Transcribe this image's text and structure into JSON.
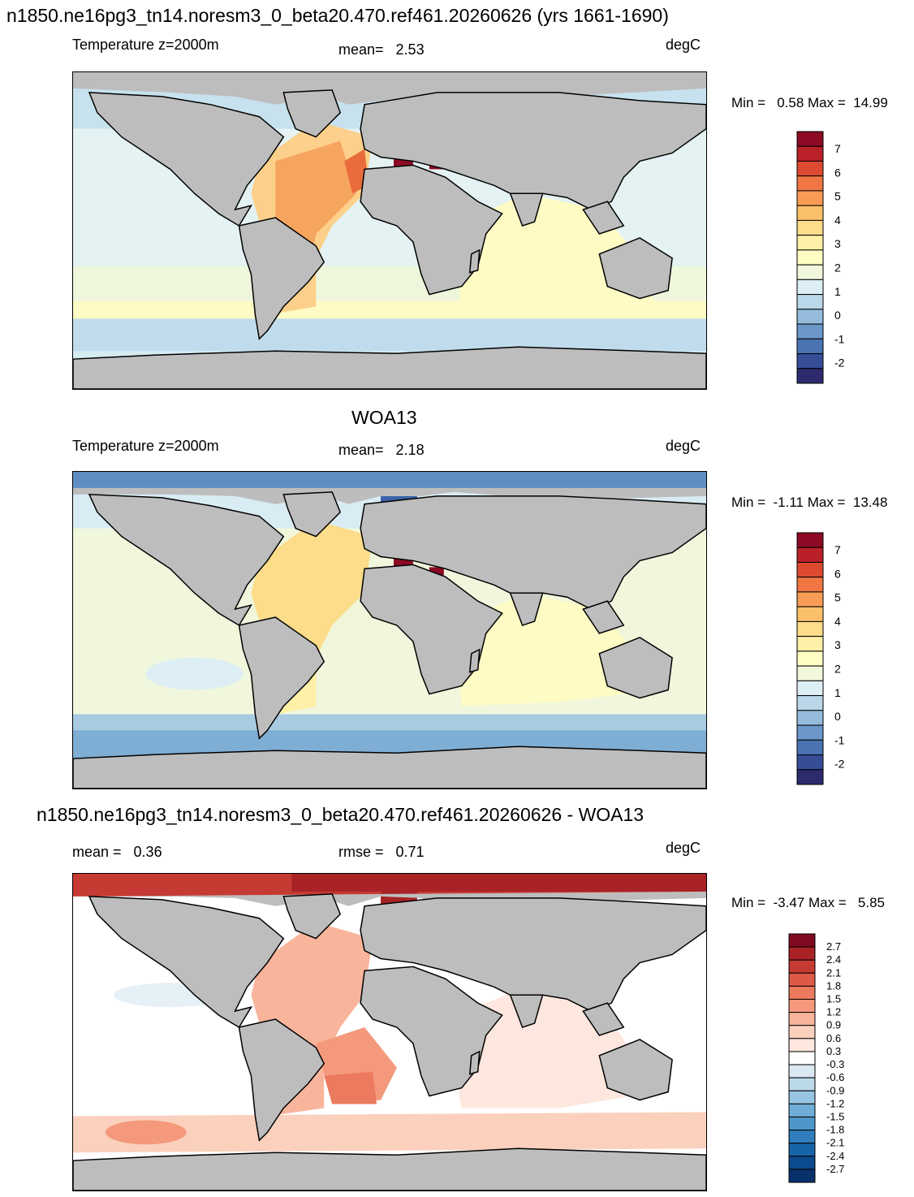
{
  "run_title": "n1850.ne16pg3_tn14.noresm3_0_beta20.470.ref461.20260626 (yrs 1661-1690)",
  "panels": [
    {
      "id": "model",
      "field_label": "Temperature z=2000m",
      "mean_label": "mean=   2.53",
      "units": "degC",
      "minmax": "Min =   0.58 Max =  14.99",
      "colorbar_colors": [
        "#2d2a6e",
        "#374d98",
        "#4a74b4",
        "#6b98c8",
        "#94bbdb",
        "#bad8e9",
        "#ddeff5",
        "#f0f7dc",
        "#fefdc3",
        "#fef0a6",
        "#fddc8a",
        "#fcc06a",
        "#f89c55",
        "#f07744",
        "#dd4a32",
        "#b92028",
        "#8c0a24"
      ],
      "colorbar_labels": [
        "7",
        "6",
        "5",
        "4",
        "3",
        "2",
        "1",
        "0",
        "-1",
        "-2"
      ],
      "map_description_colors": {
        "land": "#bdbdbd",
        "cold": "#c7e2ee",
        "cool": "#e8f4f3",
        "mild": "#fefbc4",
        "warm": "#fcd08a",
        "hot": "#f6a55e",
        "hottest": "#e86c3c"
      }
    },
    {
      "id": "obs",
      "heading": "WOA13",
      "field_label": "Temperature z=2000m",
      "mean_label": "mean=   2.18",
      "units": "degC",
      "minmax": "Min =  -1.11 Max =  13.48",
      "colorbar_colors": [
        "#2d2a6e",
        "#374d98",
        "#4a74b4",
        "#6b98c8",
        "#94bbdb",
        "#bad8e9",
        "#ddeff5",
        "#f0f7dc",
        "#fefdc3",
        "#fef0a6",
        "#fddc8a",
        "#fcc06a",
        "#f89c55",
        "#f07744",
        "#dd4a32",
        "#b92028",
        "#8c0a24"
      ],
      "colorbar_labels": [
        "7",
        "6",
        "5",
        "4",
        "3",
        "2",
        "1",
        "0",
        "-1",
        "-2"
      ]
    },
    {
      "id": "diff",
      "heading": "n1850.ne16pg3_tn14.noresm3_0_beta20.470.ref461.20260626 - WOA13",
      "mean_label": "mean =   0.36",
      "rmse_label": "rmse =   0.71",
      "units": "degC",
      "minmax": "Min =  -3.47 Max =   5.85",
      "colorbar_colors": [
        "#08306b",
        "#0b4a8c",
        "#1864a8",
        "#2f7dbc",
        "#4d96ca",
        "#6fadd6",
        "#96c5e1",
        "#bcd9ea",
        "#dbe9f3",
        "#ffffff",
        "#fde7de",
        "#fbd0bd",
        "#f8b59b",
        "#f4997c",
        "#ec7a5e",
        "#de5a47",
        "#c63a34",
        "#a82226",
        "#800a1f"
      ],
      "colorbar_labels": [
        "2.7",
        "2.4",
        "2.1",
        "1.8",
        "1.5",
        "1.2",
        "0.9",
        "0.6",
        "0.3",
        "-0.3",
        "-0.6",
        "-0.9",
        "-1.2",
        "-1.5",
        "-1.8",
        "-2.1",
        "-2.4",
        "-2.7"
      ]
    }
  ]
}
